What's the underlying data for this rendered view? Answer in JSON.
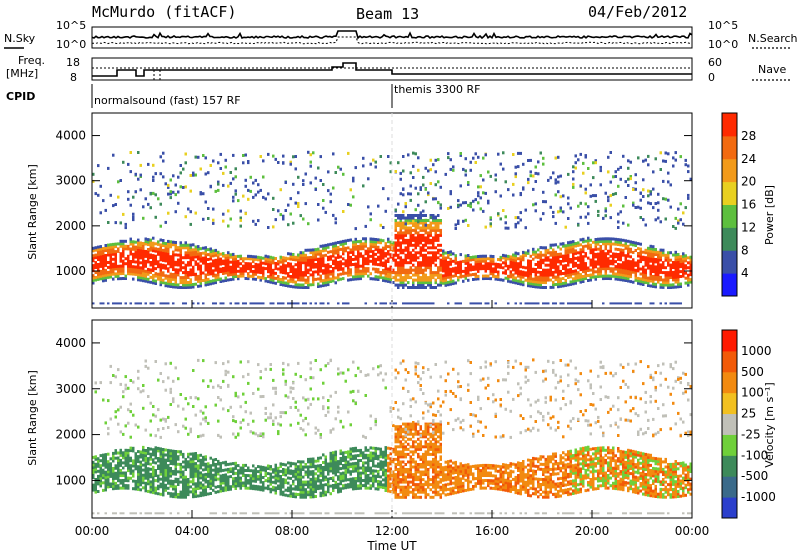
{
  "header": {
    "station": "McMurdo (fitACF)",
    "beam": "Beam 13",
    "date": "04/Feb/2012"
  },
  "noise_panel": {
    "left_label": "N.Sky",
    "right_label": "N.Search",
    "left_ticks": [
      "10^5",
      "10^0"
    ],
    "right_ticks": [
      "10^5",
      "10^0"
    ]
  },
  "freq_panel": {
    "left_label_1": "Freq.",
    "left_label_2": "[MHz]",
    "right_label": "Nave",
    "left_ticks": [
      "18",
      "8"
    ],
    "right_ticks": [
      "60",
      "0"
    ]
  },
  "cpid": {
    "label": "CPID",
    "programs": [
      {
        "name": "normalsound (fast) 157 RF",
        "start_hour": 0
      },
      {
        "name": "themis 3300 RF",
        "start_hour": 12
      }
    ]
  },
  "chart_data": [
    {
      "type": "heatmap",
      "name": "Power",
      "ylabel": "Slant Range [km]",
      "yticks": [
        1000,
        2000,
        3000,
        4000
      ],
      "ylim": [
        180,
        4500
      ],
      "xlim": [
        0,
        24
      ],
      "colorbar": {
        "label": "Power [dB]",
        "ticks": [
          "4",
          "8",
          "12",
          "16",
          "20",
          "24",
          "28"
        ],
        "colors": [
          "#1a1aff",
          "#3a4fa8",
          "#3d8a5a",
          "#5dbf3e",
          "#e8d020",
          "#f29a1a",
          "#f26a10",
          "#ff2a00"
        ]
      }
    },
    {
      "type": "heatmap",
      "name": "Velocity",
      "ylabel": "Slant Range [km]",
      "yticks": [
        1000,
        2000,
        3000,
        4000
      ],
      "ylim": [
        180,
        4500
      ],
      "xlim": [
        0,
        24
      ],
      "colorbar": {
        "label": "Velocity [m s⁻¹]",
        "ticks": [
          "1000",
          "500",
          "100",
          "25",
          "-25",
          "-100",
          "-500",
          "-1000"
        ],
        "colors": [
          "#2b3fcc",
          "#3a6a8a",
          "#3d8a5a",
          "#6fd03a",
          "#c0c0b8",
          "#f2c020",
          "#f28a10",
          "#f25a08",
          "#ff1a00"
        ]
      }
    }
  ],
  "xaxis": {
    "ticks": [
      "00:00",
      "04:00",
      "08:00",
      "12:00",
      "16:00",
      "20:00",
      "00:00"
    ],
    "label": "Time UT"
  }
}
